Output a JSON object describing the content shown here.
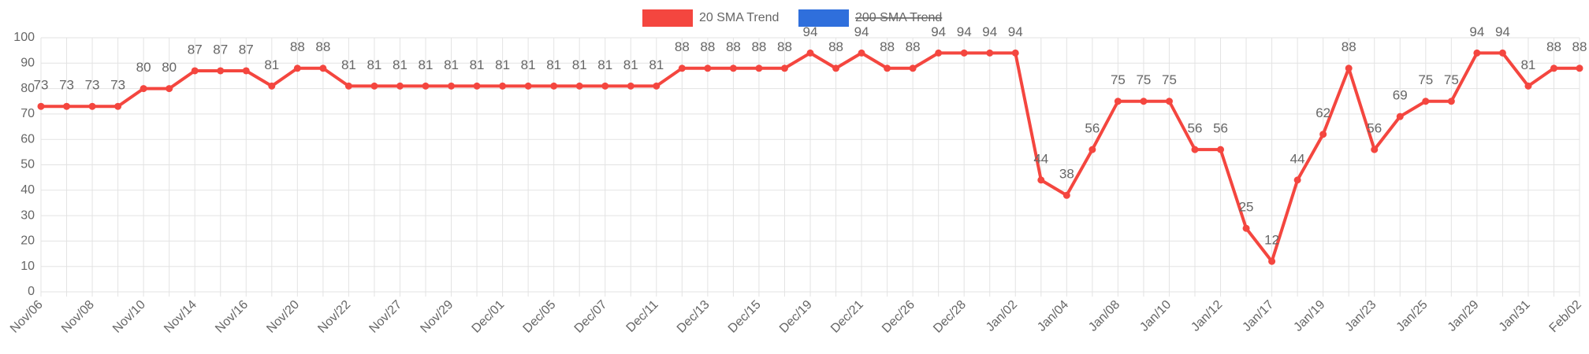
{
  "chart_data": {
    "type": "line",
    "categories": [
      "Nov/06",
      null,
      "Nov/08",
      null,
      "Nov/10",
      null,
      "Nov/14",
      null,
      "Nov/16",
      null,
      "Nov/20",
      null,
      "Nov/22",
      null,
      "Nov/27",
      null,
      "Nov/29",
      null,
      "Dec/01",
      null,
      "Dec/05",
      null,
      "Dec/07",
      null,
      "Dec/11",
      null,
      "Dec/13",
      null,
      "Dec/15",
      null,
      "Dec/19",
      null,
      "Dec/21",
      null,
      "Dec/26",
      null,
      "Dec/28",
      null,
      "Jan/02",
      null,
      "Jan/04",
      null,
      "Jan/08",
      null,
      "Jan/10",
      null,
      "Jan/12",
      null,
      "Jan/17",
      null,
      "Jan/19",
      null,
      "Jan/23",
      null,
      "Jan/25",
      null,
      "Jan/29",
      null,
      "Jan/31",
      null,
      "Feb/02"
    ],
    "series": [
      {
        "name": "20 SMA Trend",
        "color": "#f4463f",
        "values": [
          73,
          73,
          73,
          73,
          80,
          80,
          87,
          87,
          87,
          81,
          88,
          88,
          81,
          81,
          81,
          81,
          81,
          81,
          81,
          81,
          81,
          81,
          81,
          81,
          81,
          88,
          88,
          88,
          88,
          88,
          94,
          88,
          94,
          88,
          88,
          94,
          94,
          94,
          94,
          44,
          38,
          56,
          75,
          75,
          75,
          56,
          56,
          25,
          12,
          44,
          62,
          88,
          56,
          69,
          75,
          75,
          94,
          94,
          81,
          88,
          88
        ]
      },
      {
        "name": "200 SMA Trend",
        "color": "#2f6fdc",
        "hidden": true
      }
    ],
    "ylim": [
      0,
      100
    ],
    "yticks": [
      0,
      10,
      20,
      30,
      40,
      50,
      60,
      70,
      80,
      90,
      100
    ],
    "grid": true,
    "legend": "top"
  }
}
